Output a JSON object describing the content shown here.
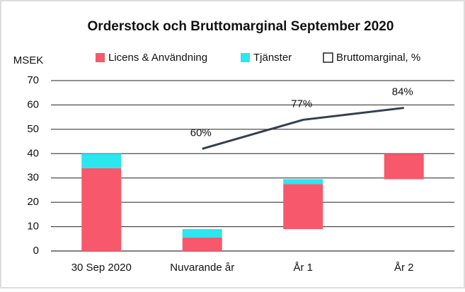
{
  "chart_data": {
    "type": "bar",
    "title": "Orderstock och Bruttomarginal September 2020",
    "y_label": "MSEK",
    "categories": [
      "30 Sep 2020",
      "Nuvarande år",
      "År 1",
      "År 2"
    ],
    "bottoms": [
      0,
      0,
      9,
      29.5
    ],
    "series": [
      {
        "name": "Licens & Användning",
        "color": "#f7586b",
        "values": [
          34,
          5.5,
          18.5,
          10.5
        ]
      },
      {
        "name": "Tjänster",
        "color": "#2ce6f0",
        "values": [
          6,
          3.5,
          2,
          0
        ]
      },
      {
        "name": "Bruttomarginal, %",
        "color": "#333f4f",
        "type": "line",
        "axis": "y2",
        "values": [
          null,
          60,
          77,
          84
        ],
        "value_labels": [
          null,
          "60%",
          "77%",
          "84%"
        ]
      }
    ],
    "ylim": [
      0,
      70
    ],
    "yticks": [
      0,
      10,
      20,
      30,
      40,
      50,
      60,
      70
    ],
    "y2lim": [
      0,
      100
    ],
    "grid": true,
    "legend": "top"
  }
}
